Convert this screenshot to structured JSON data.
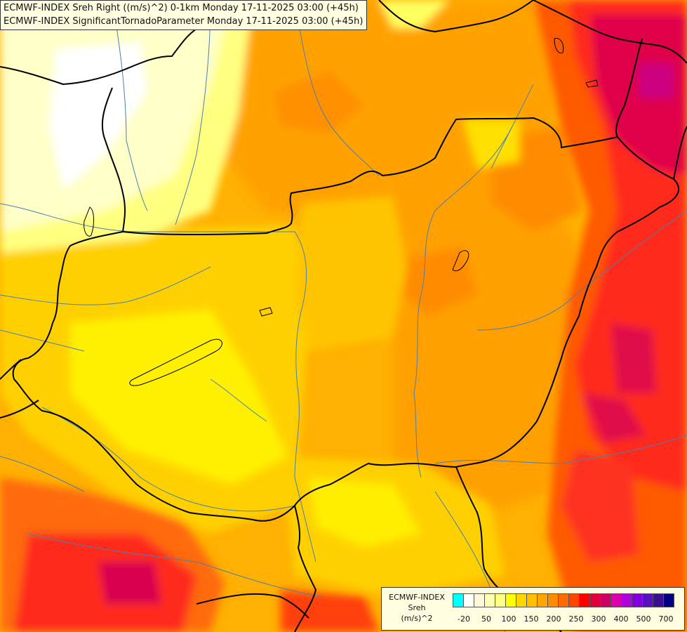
{
  "title": {
    "line1": "ECMWF-INDEX Sreh Right ((m/s)^2) 0-1km Monday 17-11-2025 03:00 (+45h)",
    "line2": "ECMWF-INDEX SignificantTornadoParameter Monday 17-11-2025 03:00 (+45h)"
  },
  "legend": {
    "source": "ECMWF-INDEX",
    "variable": "Sreh",
    "unit": "(m/s)^2",
    "colors": [
      "#00ffff",
      "#ffffff",
      "#fff8d8",
      "#ffffb0",
      "#ffff80",
      "#ffff00",
      "#ffd700",
      "#ffc000",
      "#ffa500",
      "#ff8c00",
      "#ff6a00",
      "#ff4500",
      "#ff0000",
      "#e0003c",
      "#cc0066",
      "#dd00aa",
      "#b000e0",
      "#8000e0",
      "#5a10c0",
      "#3a1090",
      "#000080"
    ],
    "ticks": [
      "-20",
      "50",
      "100",
      "150",
      "200",
      "250",
      "300",
      "400",
      "500",
      "700"
    ]
  },
  "field_colors": {
    "very_light": "#ffffff",
    "light": "#ffffc8",
    "pale": "#ffff80",
    "yellow": "#ffff00",
    "gold": "#ffd700",
    "amber": "#ffb800",
    "orange": "#ffa000",
    "dark_orange": "#ff8800",
    "red_orange": "#ff5000",
    "red": "#ff2020",
    "crimson": "#e0004a",
    "magenta": "#cc0088"
  }
}
